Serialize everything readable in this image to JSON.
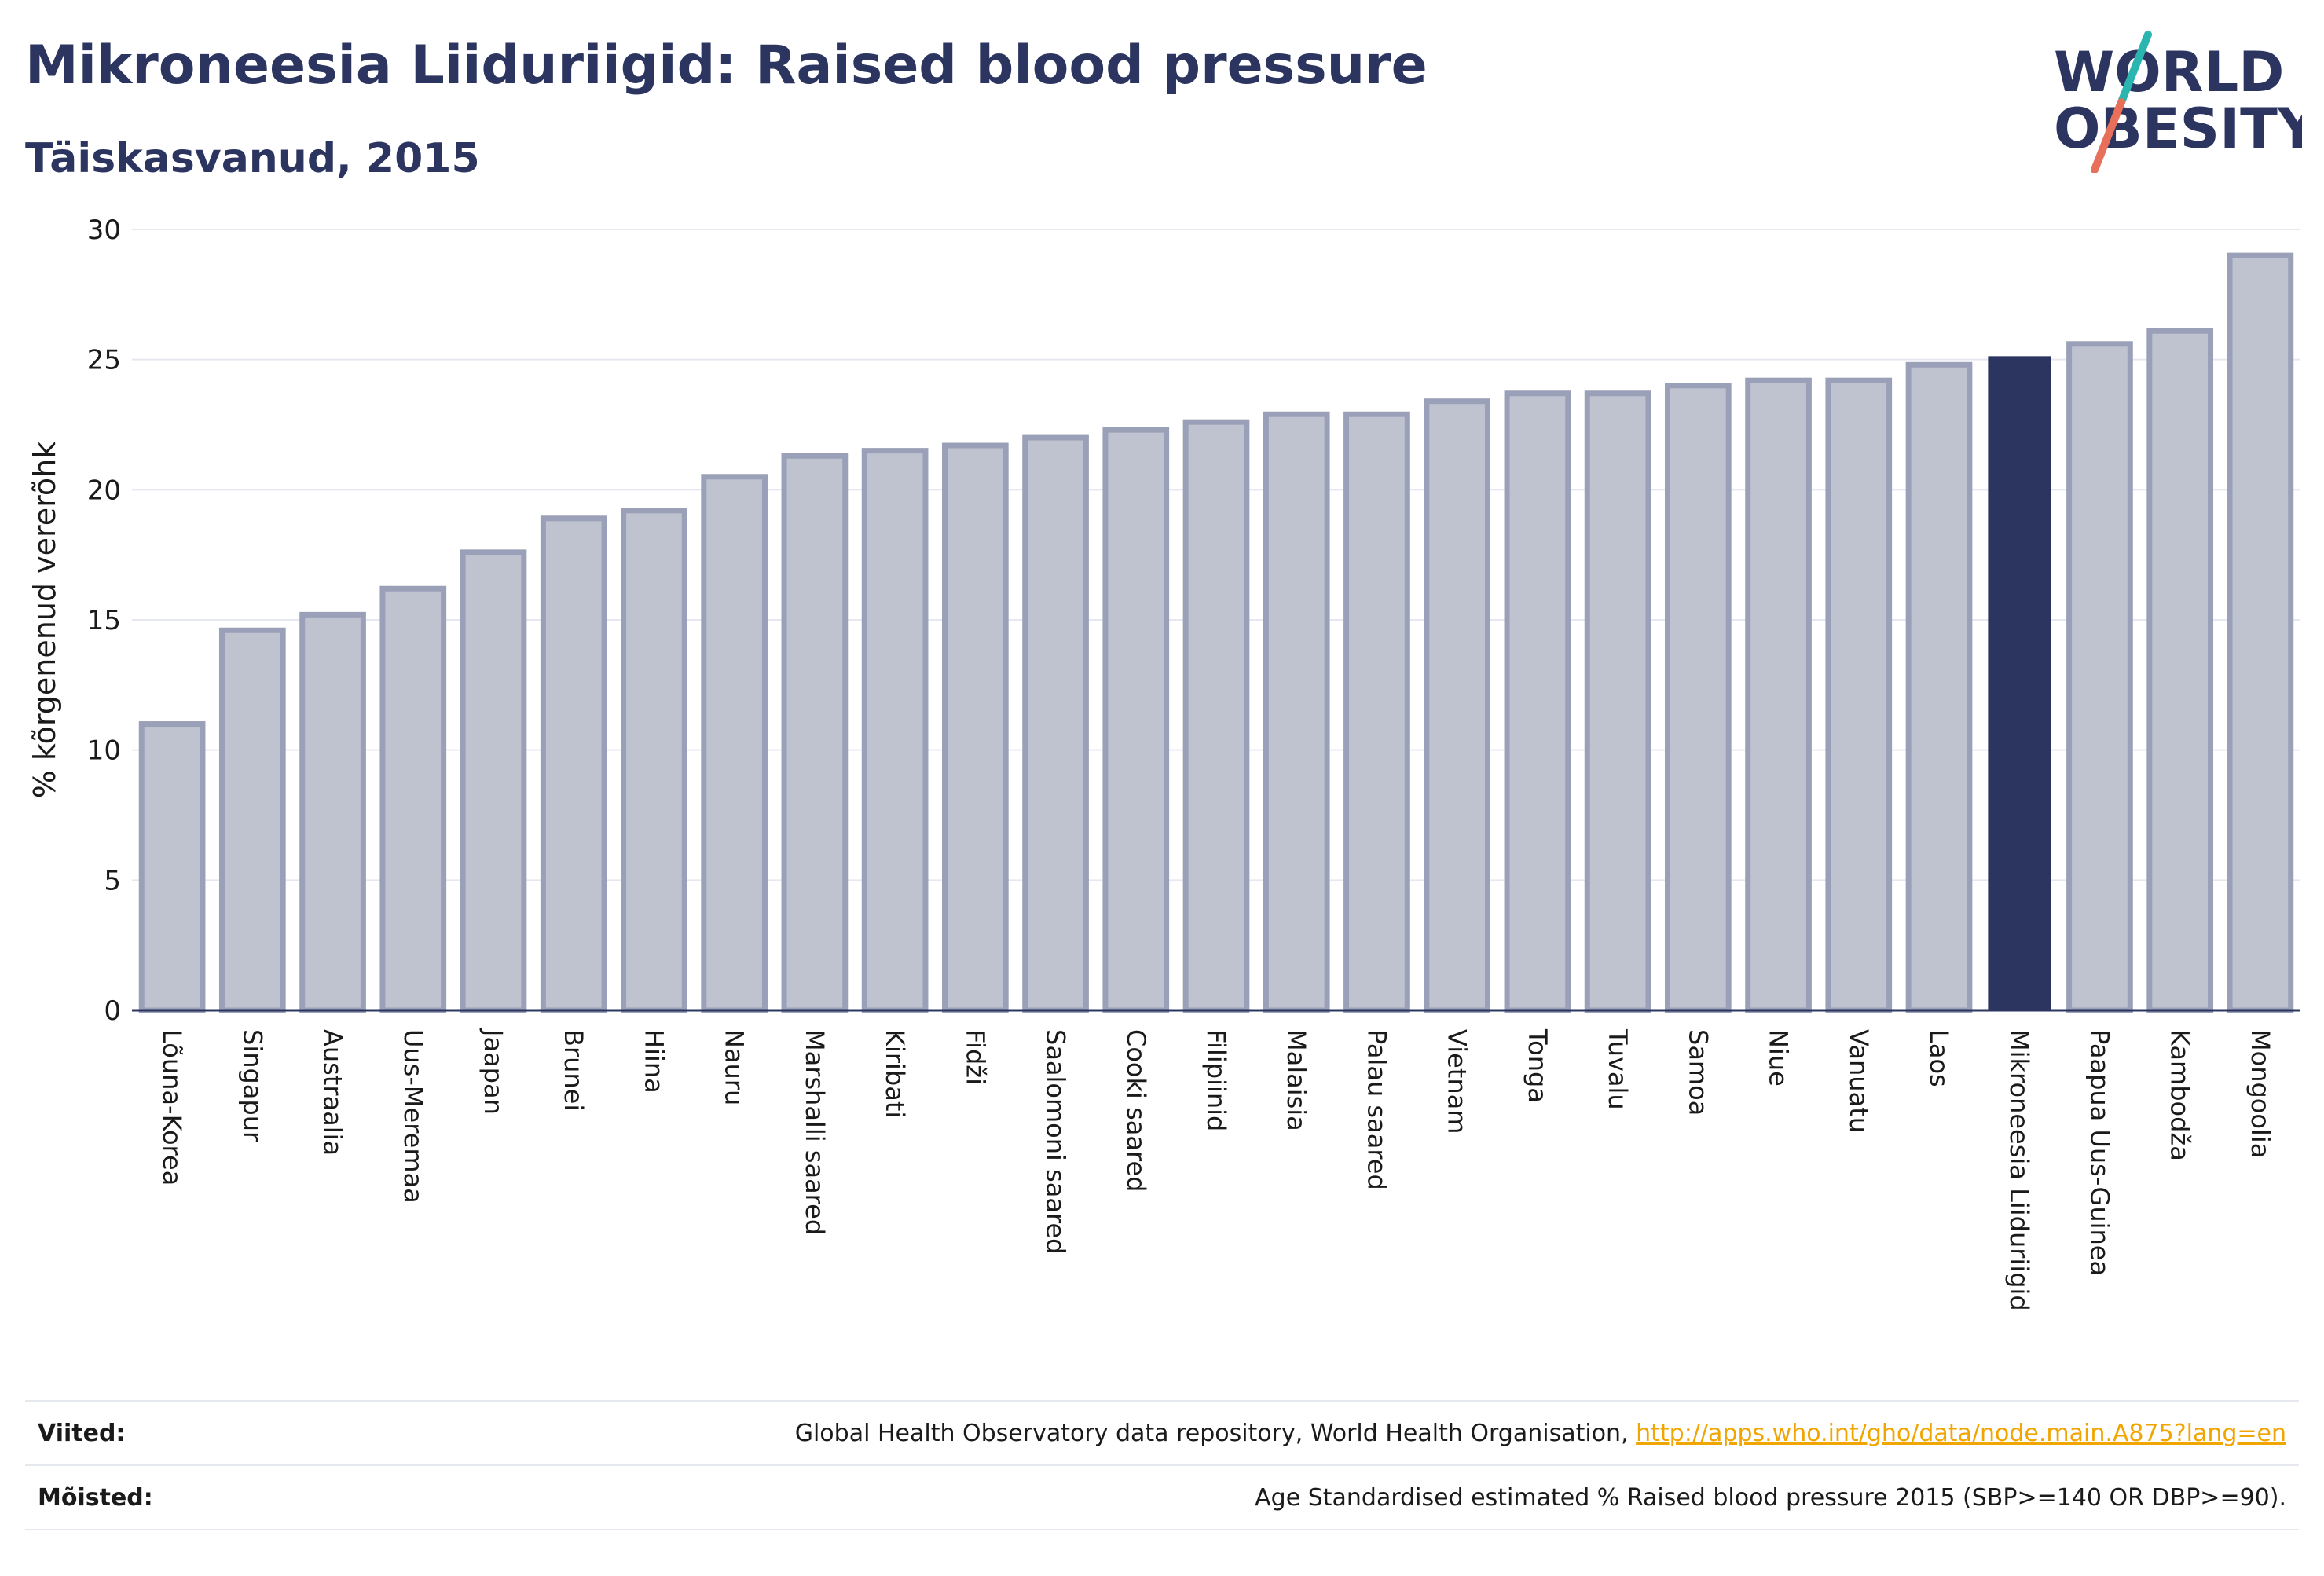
{
  "header": {
    "title": "Mikroneesia Liiduriigid: Raised blood pressure",
    "subtitle": "Täiskasvanud, 2015",
    "logo_line1": "WORLD",
    "logo_line2": "OBESITY"
  },
  "colors": {
    "bar": "#bfc3d0",
    "bar_border": "#9aa0b8",
    "highlight": "#2b3560",
    "title": "#2b3560",
    "logo_slash_top": "#2bb5b0",
    "logo_slash_bottom": "#e8705a"
  },
  "chart_data": {
    "type": "bar",
    "title": "Mikroneesia Liiduriigid: Raised blood pressure",
    "subtitle": "Täiskasvanud, 2015",
    "xlabel": "",
    "ylabel": "% kõrgenenud vererõhk",
    "ylim": [
      0,
      30
    ],
    "yticks": [
      0,
      5,
      10,
      15,
      20,
      25,
      30
    ],
    "grid": true,
    "highlight": "Mikroneesia Liiduriigid",
    "categories": [
      "Lõuna-Korea",
      "Singapur",
      "Austraalia",
      "Uus-Meremaa",
      "Jaapan",
      "Brunei",
      "Hiina",
      "Nauru",
      "Marshalli saared",
      "Kiribati",
      "Fidži",
      "Saalomoni saared",
      "Cooki saared",
      "Filipiinid",
      "Malaisia",
      "Palau saared",
      "Vietnam",
      "Tonga",
      "Tuvalu",
      "Samoa",
      "Niue",
      "Vanuatu",
      "Laos",
      "Mikroneesia Liiduriigid",
      "Paapua Uus-Guinea",
      "Kambodža",
      "Mongoolia"
    ],
    "values": [
      11.0,
      14.6,
      15.2,
      16.2,
      17.6,
      18.9,
      19.2,
      20.5,
      21.3,
      21.5,
      21.7,
      22.0,
      22.3,
      22.6,
      22.9,
      22.9,
      23.4,
      23.7,
      23.7,
      24.0,
      24.2,
      24.2,
      24.8,
      25.1,
      25.6,
      26.1,
      29.0
    ]
  },
  "footer": {
    "refs_label": "Viited:",
    "refs_text": "Global Health Observatory data repository, World Health Organisation, ",
    "refs_link": "http://apps.who.int/gho/data/node.main.A875?lang=en",
    "defs_label": "Mõisted:",
    "defs_text": "Age Standardised estimated % Raised blood pressure 2015 (SBP>=140 OR DBP>=90)."
  }
}
